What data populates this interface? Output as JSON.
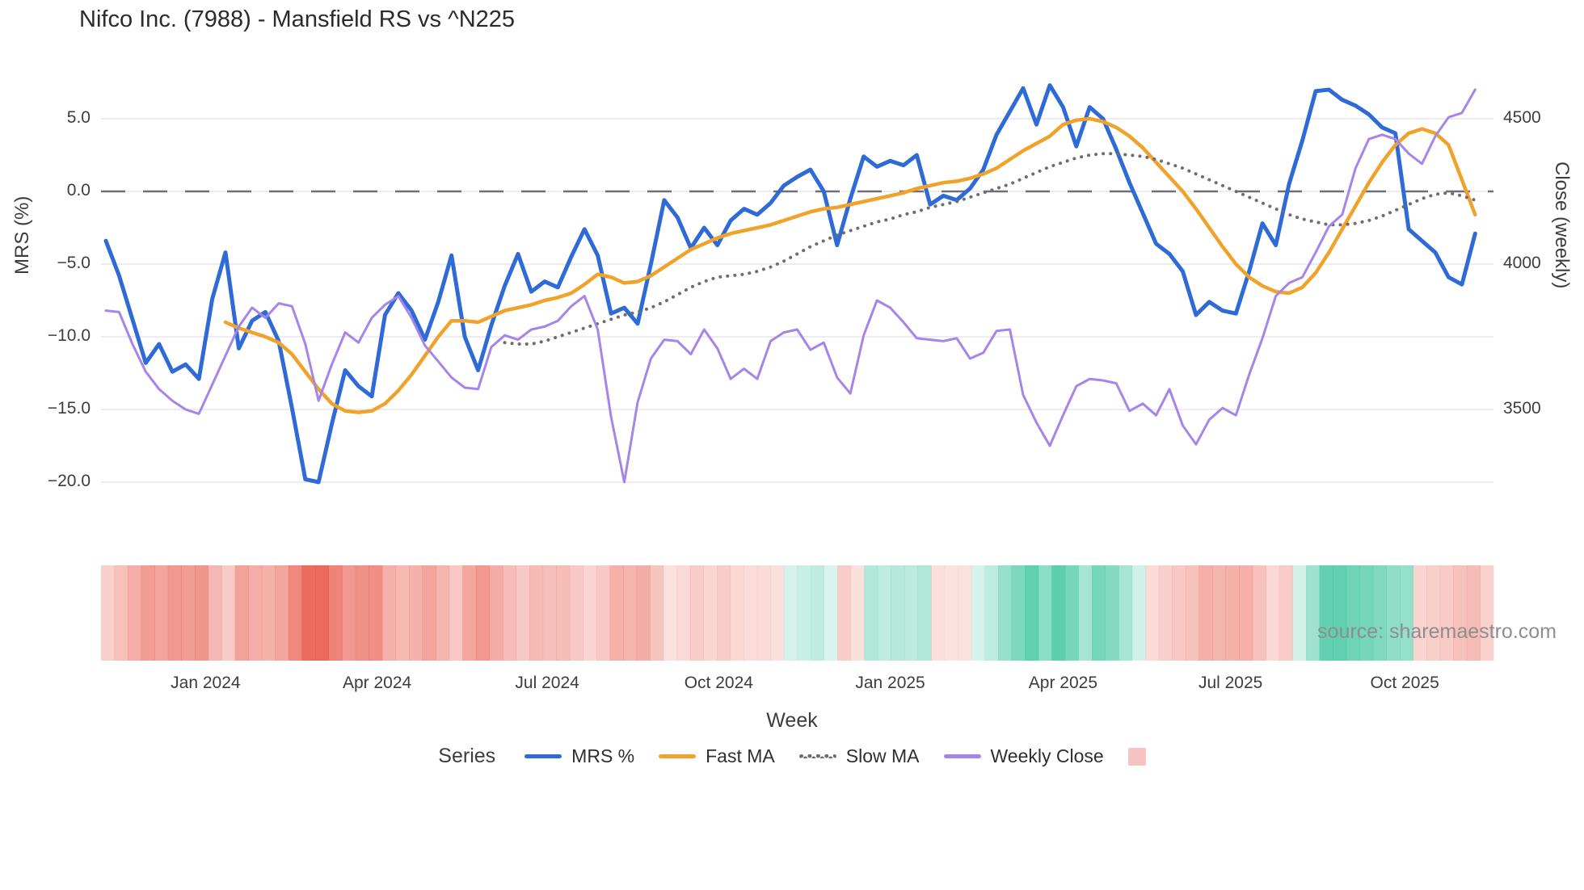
{
  "title": "Nifco Inc. (7988) - Mansfield RS vs ^N225",
  "source": "source: sharemaestro.com",
  "axes": {
    "left": {
      "label": "MRS (%)",
      "ticks": [
        {
          "label": "5.0",
          "value": 5
        },
        {
          "label": "0.0",
          "value": 0
        },
        {
          "label": "−5.0",
          "value": -5
        },
        {
          "label": "−10.0",
          "value": -10
        },
        {
          "label": "−15.0",
          "value": -15
        },
        {
          "label": "−20.0",
          "value": -20
        }
      ]
    },
    "right": {
      "label": "Close (weekly)",
      "ticks": [
        {
          "label": "4500",
          "value": 4500
        },
        {
          "label": "4000",
          "value": 4000
        },
        {
          "label": "3500",
          "value": 3500
        }
      ]
    },
    "x": {
      "label": "Week",
      "ticks": [
        {
          "label": "Jan 2024",
          "week": 7.5
        },
        {
          "label": "Apr 2024",
          "week": 20.4
        },
        {
          "label": "Jul 2024",
          "week": 33.2
        },
        {
          "label": "Oct 2024",
          "week": 46.1
        },
        {
          "label": "Jan 2025",
          "week": 59.0
        },
        {
          "label": "Apr 2025",
          "week": 72.0
        },
        {
          "label": "Jul 2025",
          "week": 84.6
        },
        {
          "label": "Oct 2025",
          "week": 97.7
        }
      ]
    }
  },
  "legend": {
    "title": "Series",
    "entries": [
      {
        "label": "MRS %",
        "color": "#2e6bd6",
        "style": "solid"
      },
      {
        "label": "Fast MA",
        "color": "#efa32b",
        "style": "solid"
      },
      {
        "label": "Slow MA",
        "color": "#6e6e6e",
        "style": "dotted"
      },
      {
        "label": "Weekly Close",
        "color": "#a685e8",
        "style": "solid"
      },
      {
        "label": "",
        "color": "#f8c3c3",
        "style": "square"
      }
    ]
  },
  "colors": {
    "grid": "#ececf2",
    "zero_line": "#6e6e78",
    "mrs": "#2e6bd6",
    "fast_ma": "#efa32b",
    "slow_ma": "#6e6e6e",
    "weekly_close": "#a685e8",
    "heat_positive": "#34c39a",
    "heat_negative": "#e74c3c"
  },
  "chart_data": {
    "type": "line",
    "x_unit": "week_index",
    "weeks": 104,
    "left_ylim": [
      -22,
      8
    ],
    "right_ylim": [
      3150,
      4650
    ],
    "grid": true,
    "zero_reference_line": 0,
    "series": [
      {
        "name": "MRS %",
        "axis": "left",
        "style": "solid",
        "width": 5,
        "values": [
          -3.4,
          -5.8,
          -8.8,
          -11.8,
          -10.5,
          -12.4,
          -11.9,
          -12.9,
          -7.4,
          -4.2,
          -10.8,
          -8.9,
          -8.3,
          -10.3,
          -14.9,
          -19.8,
          -20.0,
          -16.0,
          -12.3,
          -13.4,
          -14.1,
          -8.5,
          -7.0,
          -8.2,
          -10.2,
          -7.6,
          -4.4,
          -10.0,
          -12.3,
          -9.2,
          -6.5,
          -4.3,
          -6.9,
          -6.2,
          -6.6,
          -4.5,
          -2.6,
          -4.4,
          -8.4,
          -8.0,
          -9.1,
          -5.0,
          -0.6,
          -1.8,
          -3.9,
          -2.5,
          -3.7,
          -2.0,
          -1.2,
          -1.6,
          -0.8,
          0.4,
          1.0,
          1.5,
          0.0,
          -3.7,
          -0.5,
          2.4,
          1.7,
          2.1,
          1.8,
          2.5,
          -0.9,
          -0.3,
          -0.6,
          0.2,
          1.5,
          3.9,
          5.5,
          7.1,
          4.6,
          7.3,
          5.8,
          3.1,
          5.8,
          5.0,
          2.9,
          0.6,
          -1.5,
          -3.6,
          -4.3,
          -5.5,
          -8.5,
          -7.6,
          -8.2,
          -8.4,
          -5.5,
          -2.2,
          -3.7,
          0.5,
          3.5,
          6.9,
          7.0,
          6.3,
          5.9,
          5.3,
          4.4,
          4.0,
          -2.6,
          -3.4,
          -4.2,
          -5.9,
          -6.4,
          -2.9
        ]
      },
      {
        "name": "Fast MA",
        "axis": "left",
        "style": "solid",
        "width": 4.5,
        "values": [
          null,
          null,
          null,
          null,
          null,
          null,
          null,
          null,
          null,
          -9.0,
          -9.4,
          -9.7,
          -10.0,
          -10.4,
          -11.2,
          -12.4,
          -13.6,
          -14.6,
          -15.1,
          -15.2,
          -15.1,
          -14.6,
          -13.7,
          -12.6,
          -11.3,
          -10.0,
          -8.9,
          -8.9,
          -9.0,
          -8.6,
          -8.2,
          -8.0,
          -7.8,
          -7.5,
          -7.3,
          -7.0,
          -6.4,
          -5.7,
          -5.9,
          -6.3,
          -6.2,
          -5.8,
          -5.2,
          -4.6,
          -4.0,
          -3.6,
          -3.2,
          -2.9,
          -2.7,
          -2.5,
          -2.3,
          -2.0,
          -1.7,
          -1.4,
          -1.2,
          -1.1,
          -0.9,
          -0.7,
          -0.5,
          -0.3,
          -0.1,
          0.2,
          0.4,
          0.6,
          0.7,
          0.9,
          1.2,
          1.6,
          2.2,
          2.8,
          3.3,
          3.8,
          4.6,
          4.9,
          5.0,
          4.8,
          4.4,
          3.8,
          3.0,
          2.0,
          1.0,
          0.0,
          -1.2,
          -2.5,
          -3.8,
          -5.0,
          -5.9,
          -6.5,
          -6.9,
          -7.0,
          -6.6,
          -5.6,
          -4.2,
          -2.6,
          -1.0,
          0.6,
          2.0,
          3.2,
          4.0,
          4.3,
          4.0,
          3.2,
          0.8,
          -1.6
        ]
      },
      {
        "name": "Slow MA",
        "axis": "left",
        "style": "dotted",
        "width": 4,
        "values": [
          null,
          null,
          null,
          null,
          null,
          null,
          null,
          null,
          null,
          null,
          null,
          null,
          null,
          null,
          null,
          null,
          null,
          null,
          null,
          null,
          null,
          null,
          null,
          null,
          null,
          null,
          null,
          null,
          null,
          null,
          -10.4,
          -10.5,
          -10.5,
          -10.3,
          -10.0,
          -9.7,
          -9.4,
          -9.1,
          -8.8,
          -8.5,
          -8.3,
          -8.0,
          -7.6,
          -7.1,
          -6.6,
          -6.2,
          -5.9,
          -5.8,
          -5.7,
          -5.5,
          -5.2,
          -4.8,
          -4.3,
          -3.8,
          -3.4,
          -3.0,
          -2.7,
          -2.4,
          -2.1,
          -1.9,
          -1.6,
          -1.4,
          -1.1,
          -0.9,
          -0.7,
          -0.4,
          -0.1,
          0.2,
          0.5,
          0.9,
          1.3,
          1.7,
          2.0,
          2.3,
          2.5,
          2.6,
          2.6,
          2.5,
          2.4,
          2.2,
          1.9,
          1.6,
          1.2,
          0.8,
          0.4,
          0.0,
          -0.4,
          -0.8,
          -1.2,
          -1.6,
          -1.9,
          -2.1,
          -2.3,
          -2.3,
          -2.2,
          -2.0,
          -1.7,
          -1.3,
          -0.9,
          -0.5,
          -0.2,
          -0.1,
          -0.3,
          -0.6
        ]
      },
      {
        "name": "Weekly Close",
        "axis": "right",
        "style": "solid",
        "width": 3,
        "values": [
          3840,
          3835,
          3725,
          3630,
          3570,
          3530,
          3500,
          3485,
          3585,
          3685,
          3785,
          3850,
          3815,
          3865,
          3855,
          3725,
          3530,
          3655,
          3765,
          3730,
          3815,
          3860,
          3890,
          3815,
          3720,
          3665,
          3610,
          3575,
          3570,
          3715,
          3755,
          3740,
          3775,
          3785,
          3805,
          3855,
          3890,
          3775,
          3475,
          3250,
          3525,
          3675,
          3740,
          3735,
          3690,
          3775,
          3710,
          3605,
          3640,
          3605,
          3735,
          3765,
          3775,
          3705,
          3730,
          3610,
          3555,
          3755,
          3875,
          3850,
          3800,
          3745,
          3740,
          3735,
          3745,
          3675,
          3695,
          3770,
          3775,
          3550,
          3455,
          3375,
          3480,
          3580,
          3605,
          3600,
          3590,
          3495,
          3520,
          3480,
          3570,
          3445,
          3380,
          3465,
          3505,
          3480,
          3620,
          3745,
          3890,
          3935,
          3955,
          4040,
          4130,
          4170,
          4330,
          4430,
          4445,
          4430,
          4380,
          4345,
          4440,
          4505,
          4520,
          4600
        ]
      }
    ],
    "heatmap": {
      "derived_from": "MRS %",
      "rule": "column color = sign of MRS % (green positive, red negative), opacity scales with magnitude",
      "positive_color": "#34c39a",
      "negative_color": "#e74c3c"
    }
  }
}
